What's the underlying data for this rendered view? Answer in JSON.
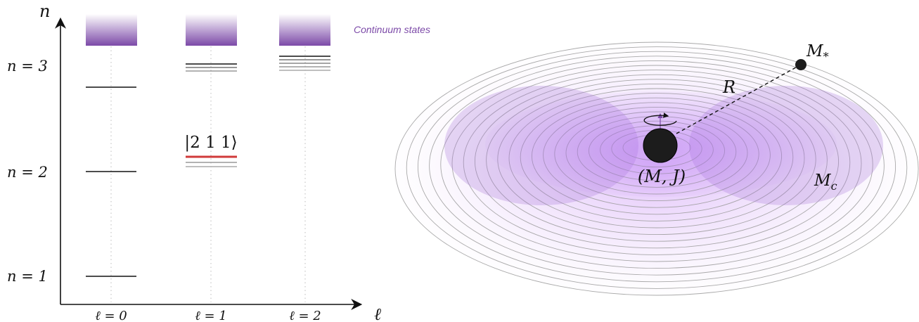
{
  "left_panel": {
    "y_axis_symbol": "n",
    "x_axis_symbol": "ℓ",
    "n_labels": [
      "n = 3",
      "n = 2",
      "n = 1"
    ],
    "l_labels": [
      "ℓ = 0",
      "ℓ = 1",
      "ℓ = 2"
    ],
    "continuum_label": "Continuum states",
    "state_label": "|2 1 1⟩",
    "continuum_color": "#7c4aa8",
    "highlight_color": "#d03a3a"
  },
  "right_panel": {
    "black_hole_label": "(M, J)",
    "cloud_label": "M_c",
    "companion_label": "M_*",
    "separation_label": "R",
    "cloud_color": "#a774d6"
  }
}
